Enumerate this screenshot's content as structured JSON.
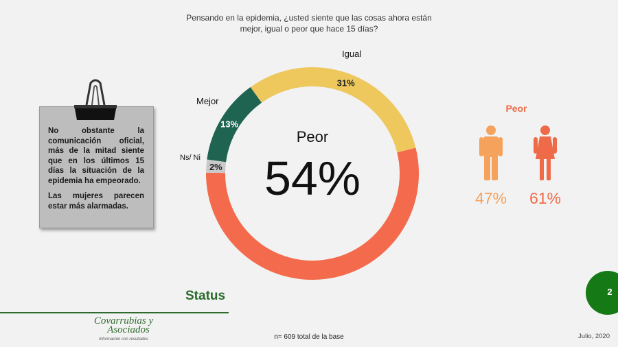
{
  "question": {
    "line1": "Pensando en la epidemia, ¿usted siente que las cosas ahora están",
    "line2": "mejor, igual o peor que hace 15 días?"
  },
  "note": {
    "paragraph1": "No obstante la comunicación oficial, más de la mitad siente que en los últimos 15 días la situación de la epidemia ha empeorado.",
    "paragraph2": "Las mujeres parecen estar más alarmadas."
  },
  "chart_data": [
    {
      "type": "pie",
      "categories": [
        "Peor",
        "Ns/ Ni",
        "Mejor",
        "Igual"
      ],
      "values": [
        54,
        2,
        13,
        31
      ],
      "value_labels": [
        "",
        "2%",
        "13%",
        "31%"
      ],
      "colors": [
        "#f36b4c",
        "#c9c9c9",
        "#1f6450",
        "#eec85d"
      ],
      "center_label": "Peor",
      "center_value": "54%"
    },
    {
      "type": "bar",
      "title": "Peor",
      "categories": [
        "Hombres",
        "Mujeres"
      ],
      "values": [
        47,
        61
      ],
      "value_labels": [
        "47%",
        "61%"
      ],
      "colors": [
        "#f5a25c",
        "#ef6a48"
      ]
    }
  ],
  "icons": {
    "male": "man-icon",
    "female": "woman-icon",
    "clip": "binder-clip-icon"
  },
  "footer": {
    "status": "Status",
    "page_number": "2",
    "logo_line1": "Covarrubias y",
    "logo_line2": "Asociados",
    "logo_tagline": "Información con resultados",
    "base_note": "n= 609 total de la base",
    "date": "Julio, 2020"
  }
}
